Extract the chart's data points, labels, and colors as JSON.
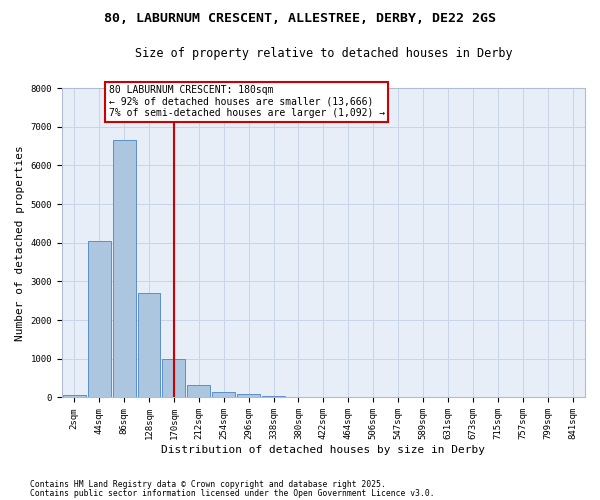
{
  "title1": "80, LABURNUM CRESCENT, ALLESTREE, DERBY, DE22 2GS",
  "title2": "Size of property relative to detached houses in Derby",
  "xlabel": "Distribution of detached houses by size in Derby",
  "ylabel": "Number of detached properties",
  "bin_labels": [
    "2sqm",
    "44sqm",
    "86sqm",
    "128sqm",
    "170sqm",
    "212sqm",
    "254sqm",
    "296sqm",
    "338sqm",
    "380sqm",
    "422sqm",
    "464sqm",
    "506sqm",
    "547sqm",
    "589sqm",
    "631sqm",
    "673sqm",
    "715sqm",
    "757sqm",
    "799sqm",
    "841sqm"
  ],
  "bar_values": [
    60,
    4050,
    6650,
    2700,
    1000,
    330,
    130,
    90,
    50,
    0,
    0,
    0,
    0,
    0,
    0,
    0,
    0,
    0,
    0,
    0,
    0
  ],
  "bar_color": "#adc6e0",
  "bar_edge_color": "#5b8fc9",
  "vline_color": "#cc0000",
  "vline_x_index": 4,
  "annotation_text": "80 LABURNUM CRESCENT: 180sqm\n← 92% of detached houses are smaller (13,666)\n7% of semi-detached houses are larger (1,092) →",
  "annotation_box_color": "#cc0000",
  "ylim": [
    0,
    8000
  ],
  "yticks": [
    0,
    1000,
    2000,
    3000,
    4000,
    5000,
    6000,
    7000,
    8000
  ],
  "grid_color": "#c8d4e8",
  "bg_color": "#e8eef8",
  "footnote1": "Contains HM Land Registry data © Crown copyright and database right 2025.",
  "footnote2": "Contains public sector information licensed under the Open Government Licence v3.0.",
  "title_fontsize": 9.5,
  "subtitle_fontsize": 8.5,
  "axis_label_fontsize": 8,
  "tick_fontsize": 6.5,
  "annotation_fontsize": 7,
  "footnote_fontsize": 5.8
}
